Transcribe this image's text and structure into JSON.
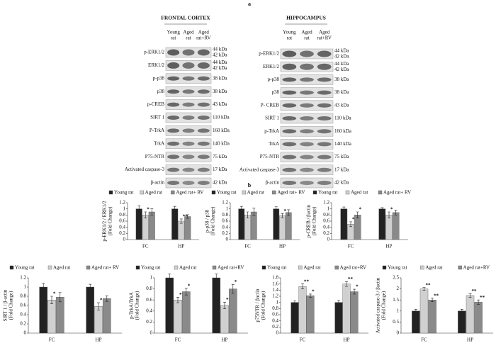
{
  "figure": {
    "panel_a_label": "a",
    "panel_b_label": "b",
    "blots": [
      {
        "title": "FRONTAL CORTEX",
        "headers": [
          [
            "Young",
            "rat"
          ],
          [
            "Aged",
            "rat"
          ],
          [
            "Aged",
            "rat+RV"
          ]
        ],
        "rows": [
          {
            "label": "p-ERK1/2",
            "kda": [
              "44 kDa",
              "42 kDa"
            ]
          },
          {
            "label": "ERK1/2",
            "kda": [
              "44 kDa",
              "42 kDa"
            ]
          },
          {
            "label": "p-p38",
            "kda": [
              "38 kDa"
            ]
          },
          {
            "label": "p38",
            "kda": [
              "38 kDa"
            ]
          },
          {
            "label": "p-CREB",
            "kda": [
              "43 kDa"
            ]
          },
          {
            "label": "SIRT 1",
            "kda": [
              "110 kDa"
            ]
          },
          {
            "label": "P-TrkA",
            "kda": [
              "160 kDa"
            ]
          },
          {
            "label": "TrkA",
            "kda": [
              "140 kDa"
            ]
          },
          {
            "label": "P75-NTR",
            "kda": [
              "75 kDa"
            ]
          },
          {
            "label": "Activated caspase-3",
            "kda": [
              "17 kDa"
            ]
          },
          {
            "label": "β-actin",
            "kda": [
              "42 kDa"
            ]
          }
        ]
      },
      {
        "title": "HIPPOCAMPUS",
        "headers": [
          [
            "Young",
            "rat"
          ],
          [
            "Aged",
            "rat"
          ],
          [
            "Aged",
            "rat+RV"
          ]
        ],
        "rows": [
          {
            "label": "p-ERK1/2",
            "kda": [
              "44 kDa",
              "42 kDa"
            ]
          },
          {
            "label": "ERK1/2",
            "kda": [
              "44 kDa",
              "42 kDa"
            ]
          },
          {
            "label": "p-p38",
            "kda": [
              "38 kDa"
            ]
          },
          {
            "label": "p38",
            "kda": [
              "38 kDa"
            ]
          },
          {
            "label": "P- CREB",
            "kda": [
              "43 kDa"
            ]
          },
          {
            "label": "SIRT 1",
            "kda": [
              "110 kDa"
            ]
          },
          {
            "label": "p-TrkA",
            "kda": [
              "160 kDa"
            ]
          },
          {
            "label": "TrkA",
            "kda": [
              "140 kDa"
            ]
          },
          {
            "label": "P75-NTR",
            "kda": [
              "75 kDa"
            ]
          },
          {
            "label": "Activated caspase-3",
            "kda": [
              "17 kDa"
            ]
          },
          {
            "label": "β-actin",
            "kda": [
              "42 kDa"
            ]
          }
        ]
      }
    ]
  },
  "chart_data": [
    {
      "type": "bar",
      "ylabel": [
        "p-ERK1/2 / ERK1/2",
        "(Fold Change)"
      ],
      "categories": [
        "FC",
        "HP"
      ],
      "ylim": [
        0,
        1.2
      ],
      "yticks": [
        0,
        0.2,
        0.4,
        0.6,
        0.8,
        1,
        1.2
      ],
      "series": [
        {
          "name": "Young rat",
          "color": "#222222",
          "values": [
            1.0,
            1.0
          ],
          "errors": [
            0.1,
            0.08
          ],
          "significance": [
            null,
            null
          ]
        },
        {
          "name": "Aged rat",
          "color": "#d0d0d0",
          "values": [
            0.8,
            0.6
          ],
          "errors": [
            0.1,
            0.07
          ],
          "significance": [
            "*",
            "**"
          ]
        },
        {
          "name": "Aged rat+ RV",
          "color": "#8a8a8a",
          "values": [
            0.9,
            0.75
          ],
          "errors": [
            0.1,
            0.06
          ],
          "significance": [
            null,
            null
          ]
        }
      ]
    },
    {
      "type": "bar",
      "ylabel": [
        "p-p38 / p38",
        "(Fold Change)"
      ],
      "categories": [
        "FC",
        "HP"
      ],
      "ylim": [
        0,
        1.2
      ],
      "yticks": [
        0,
        0.2,
        0.4,
        0.6,
        0.8,
        1,
        1.2
      ],
      "series": [
        {
          "name": "Young rat",
          "color": "#222222",
          "values": [
            1.0,
            1.0
          ],
          "errors": [
            0.08,
            0.07
          ],
          "significance": [
            null,
            null
          ]
        },
        {
          "name": "Aged rat",
          "color": "#d0d0d0",
          "values": [
            0.8,
            0.78
          ],
          "errors": [
            0.1,
            0.07
          ],
          "significance": [
            null,
            "*"
          ]
        },
        {
          "name": "Aged rat+ RV",
          "color": "#8a8a8a",
          "values": [
            0.9,
            0.88
          ],
          "errors": [
            0.12,
            0.09
          ],
          "significance": [
            null,
            null
          ]
        }
      ]
    },
    {
      "type": "bar",
      "ylabel": [
        "p-CREB / βactin",
        "(Fold Change)"
      ],
      "categories": [
        "FC",
        "HP"
      ],
      "ylim": [
        0,
        1.2
      ],
      "yticks": [
        0,
        0.2,
        0.4,
        0.6,
        0.8,
        1,
        1.2
      ],
      "series": [
        {
          "name": "Young rat",
          "color": "#222222",
          "values": [
            1.0,
            1.0
          ],
          "errors": [
            0.06,
            0.04
          ],
          "significance": [
            null,
            null
          ]
        },
        {
          "name": "Aged rat",
          "color": "#d0d0d0",
          "values": [
            0.5,
            0.8
          ],
          "errors": [
            0.08,
            0.1
          ],
          "significance": [
            "**",
            "*"
          ]
        },
        {
          "name": "Aged rat+ RV",
          "color": "#8a8a8a",
          "values": [
            0.8,
            0.88
          ],
          "errors": [
            0.1,
            0.08
          ],
          "significance": [
            "*",
            null
          ]
        }
      ]
    },
    {
      "type": "bar",
      "ylabel": [
        "SIRT 1 / β-actin",
        "(Fold Change)"
      ],
      "categories": [
        "FC",
        "HP"
      ],
      "ylim": [
        0,
        1.2
      ],
      "yticks": [
        0,
        0.2,
        0.4,
        0.6,
        0.8,
        1,
        1.2
      ],
      "series": [
        {
          "name": "Young rat",
          "color": "#222222",
          "values": [
            1.0,
            1.0
          ],
          "errors": [
            0.08,
            0.06
          ],
          "significance": [
            null,
            null
          ]
        },
        {
          "name": "Aged rat",
          "color": "#d0d0d0",
          "values": [
            0.72,
            0.58
          ],
          "errors": [
            0.08,
            0.08
          ],
          "significance": [
            "*",
            "*"
          ]
        },
        {
          "name": "Aged rat+ RV",
          "color": "#8a8a8a",
          "values": [
            0.78,
            0.75
          ],
          "errors": [
            0.1,
            0.06
          ],
          "significance": [
            null,
            null
          ]
        }
      ]
    },
    {
      "type": "bar",
      "ylabel": [
        "p-TrkA/TrkA",
        "(Fold Change)"
      ],
      "categories": [
        "FC",
        "HP"
      ],
      "ylim": [
        0,
        1
      ],
      "yticks": [
        0,
        0.2,
        0.4,
        0.6,
        0.8,
        1
      ],
      "series": [
        {
          "name": "Young rat",
          "color": "#222222",
          "values": [
            1.0,
            1.0
          ],
          "errors": [
            0.07,
            0.07
          ],
          "significance": [
            null,
            null
          ]
        },
        {
          "name": "Aged rat",
          "color": "#d0d0d0",
          "values": [
            0.6,
            0.5
          ],
          "errors": [
            0.05,
            0.06
          ],
          "significance": [
            "**",
            "**"
          ]
        },
        {
          "name": "Aged rat+RV",
          "color": "#8a8a8a",
          "values": [
            0.75,
            0.8
          ],
          "errors": [
            0.06,
            0.08
          ],
          "significance": [
            "*",
            "*"
          ]
        }
      ]
    },
    {
      "type": "bar",
      "ylabel": [
        "p75NTR / βactin",
        "(Fold Change)"
      ],
      "categories": [
        "FC",
        "HP"
      ],
      "ylim": [
        0,
        1.8
      ],
      "yticks": [
        0,
        0.2,
        0.4,
        0.6,
        0.8,
        1,
        1.2,
        1.4,
        1.6,
        1.8
      ],
      "series": [
        {
          "name": "Young rat",
          "color": "#222222",
          "values": [
            1.0,
            1.0
          ],
          "errors": [
            0.05,
            0.07
          ],
          "significance": [
            null,
            null
          ]
        },
        {
          "name": "Aged rat",
          "color": "#d0d0d0",
          "values": [
            1.52,
            1.6
          ],
          "errors": [
            0.08,
            0.08
          ],
          "significance": [
            "**",
            "**"
          ]
        },
        {
          "name": "Aged rat+RV",
          "color": "#8a8a8a",
          "values": [
            1.22,
            1.35
          ],
          "errors": [
            0.05,
            0.08
          ],
          "significance": [
            "*",
            "*"
          ]
        }
      ]
    },
    {
      "type": "bar",
      "ylabel": [
        "Activated caspase-3 / βactin",
        "(Fold Change)"
      ],
      "categories": [
        "FC",
        "HP"
      ],
      "ylim": [
        0,
        2.5
      ],
      "yticks": [
        0,
        0.5,
        1,
        1.5,
        2,
        2.5
      ],
      "series": [
        {
          "name": "Young rat",
          "color": "#222222",
          "values": [
            1.0,
            1.0
          ],
          "errors": [
            0.08,
            0.08
          ],
          "significance": [
            null,
            null
          ]
        },
        {
          "name": "Aged rat",
          "color": "#d0d0d0",
          "values": [
            2.0,
            1.7
          ],
          "errors": [
            0.06,
            0.08
          ],
          "significance": [
            "**",
            "**"
          ]
        },
        {
          "name": "Aged rat+RV",
          "color": "#8a8a8a",
          "values": [
            1.5,
            1.4
          ],
          "errors": [
            0.08,
            0.1
          ],
          "significance": [
            "**",
            "**"
          ]
        }
      ]
    }
  ]
}
